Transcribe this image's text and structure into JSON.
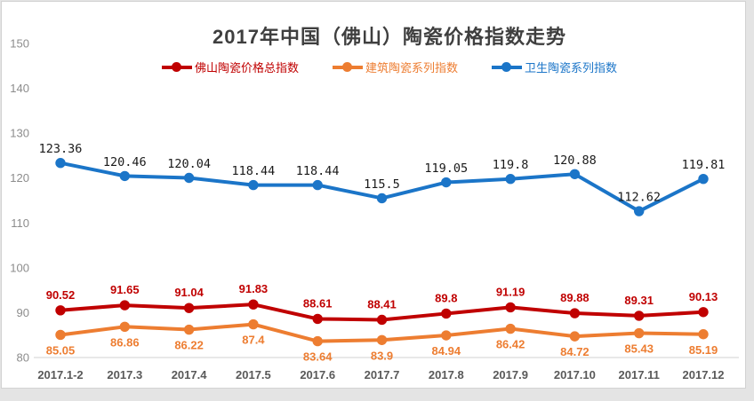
{
  "chart_data": {
    "type": "line",
    "title": "2017年中国（佛山）陶瓷价格指数走势",
    "categories": [
      "2017.1-2",
      "2017.3",
      "2017.4",
      "2017.5",
      "2017.6",
      "2017.7",
      "2017.8",
      "2017.9",
      "2017.10",
      "2017.11",
      "2017.12"
    ],
    "series": [
      {
        "name": "佛山陶瓷价格总指数",
        "color": "#c00000",
        "values": [
          90.52,
          91.65,
          91.04,
          91.83,
          88.61,
          88.41,
          89.8,
          91.19,
          89.88,
          89.31,
          90.13
        ],
        "label_position": "above",
        "label_color": "#c00000",
        "label_font": "sans-bold"
      },
      {
        "name": "建筑陶瓷系列指数",
        "color": "#ed7d31",
        "values": [
          85.05,
          86.86,
          86.22,
          87.4,
          83.64,
          83.9,
          84.94,
          86.42,
          84.72,
          85.43,
          85.19
        ],
        "label_position": "below",
        "label_color": "#ed7d31",
        "label_font": "sans-bold"
      },
      {
        "name": "卫生陶瓷系列指数",
        "color": "#1b75c8",
        "values": [
          123.36,
          120.46,
          120.04,
          118.44,
          118.44,
          115.5,
          119.05,
          119.8,
          120.88,
          112.62,
          119.81
        ],
        "label_position": "above",
        "label_color": "#1a1a1a",
        "label_font": "mono"
      }
    ],
    "ylim": [
      80,
      150
    ],
    "yticks": [
      80,
      90,
      100,
      110,
      120,
      130,
      140,
      150
    ],
    "grid": false,
    "legend_position": "top",
    "colors": {
      "axis_line": "#d9d9d9",
      "tick_color": "#8c8c8c",
      "xlabel_color": "#595959",
      "title_color": "#3f3f3f",
      "plot_background": "#ffffff",
      "page_background": "#e4e4e4"
    }
  }
}
